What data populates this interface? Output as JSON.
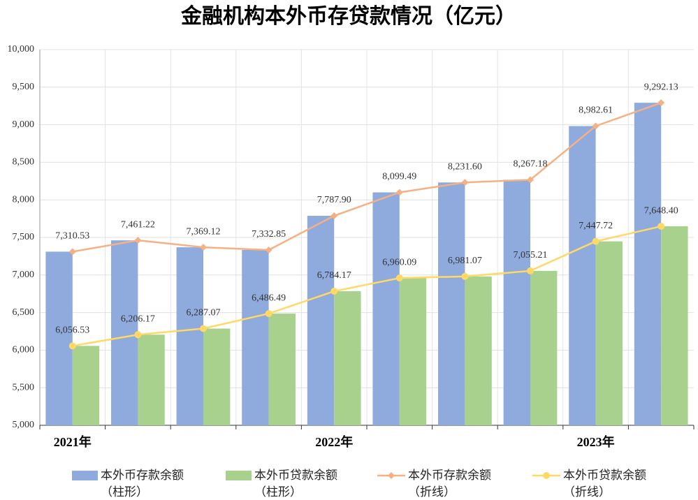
{
  "chart_data": {
    "type": "bar_line",
    "title": "金融机构本外币存贷款情况（亿元）",
    "categories": [
      "2021年",
      null,
      null,
      null,
      "2022年",
      null,
      null,
      null,
      "2023年",
      null
    ],
    "ylim": [
      5000,
      10000
    ],
    "yticks": [
      {
        "value": 5000,
        "label": "5,000"
      },
      {
        "value": 5500,
        "label": "5,500"
      },
      {
        "value": 6000,
        "label": "6,000"
      },
      {
        "value": 6500,
        "label": "6,500"
      },
      {
        "value": 7000,
        "label": "7,000"
      },
      {
        "value": 7500,
        "label": "7,500"
      },
      {
        "value": 8000,
        "label": "8,000"
      },
      {
        "value": 8500,
        "label": "8,500"
      },
      {
        "value": 9000,
        "label": "9,000"
      },
      {
        "value": 9500,
        "label": "9,500"
      },
      {
        "value": 10000,
        "label": "10,000"
      }
    ],
    "grid": true,
    "legend": "bottom",
    "series": [
      {
        "name": "本外币存款余额（柱形）",
        "type": "bar",
        "color": "#8faadc",
        "values": [
          7310.53,
          7461.22,
          7369.12,
          7332.85,
          7787.9,
          8099.49,
          8231.6,
          8267.18,
          8982.61,
          9292.13
        ]
      },
      {
        "name": "本外币贷款余额（柱形）",
        "type": "bar",
        "color": "#a9d18e",
        "values": [
          6056.53,
          6206.17,
          6287.07,
          6486.49,
          6784.17,
          6960.09,
          6981.07,
          7055.21,
          7447.72,
          7648.4
        ]
      },
      {
        "name": "本外币存款余额（折线）",
        "type": "line",
        "marker": "diamond",
        "color": "#f4b183",
        "values": [
          7310.53,
          7461.22,
          7369.12,
          7332.85,
          7787.9,
          8099.49,
          8231.6,
          8267.18,
          8982.61,
          9292.13
        ],
        "value_labels": [
          "7,310.53",
          "7,461.22",
          "7,369.12",
          "7,332.85",
          "7,787.90",
          "8,099.49",
          "8,231.60",
          "8,267.18",
          "8,982.61",
          "9,292.13"
        ]
      },
      {
        "name": "本外币贷款余额（折线）",
        "type": "line",
        "marker": "circle",
        "color": "#ffd966",
        "values": [
          6056.53,
          6206.17,
          6287.07,
          6486.49,
          6784.17,
          6960.09,
          6981.07,
          7055.21,
          7447.72,
          7648.4
        ],
        "value_labels": [
          "6,056.53",
          "6,206.17",
          "6,287.07",
          "6,486.49",
          "6,784.17",
          "6,960.09",
          "6,981.07",
          "7,055.21",
          "7,447.72",
          "7,648.40"
        ]
      }
    ]
  }
}
